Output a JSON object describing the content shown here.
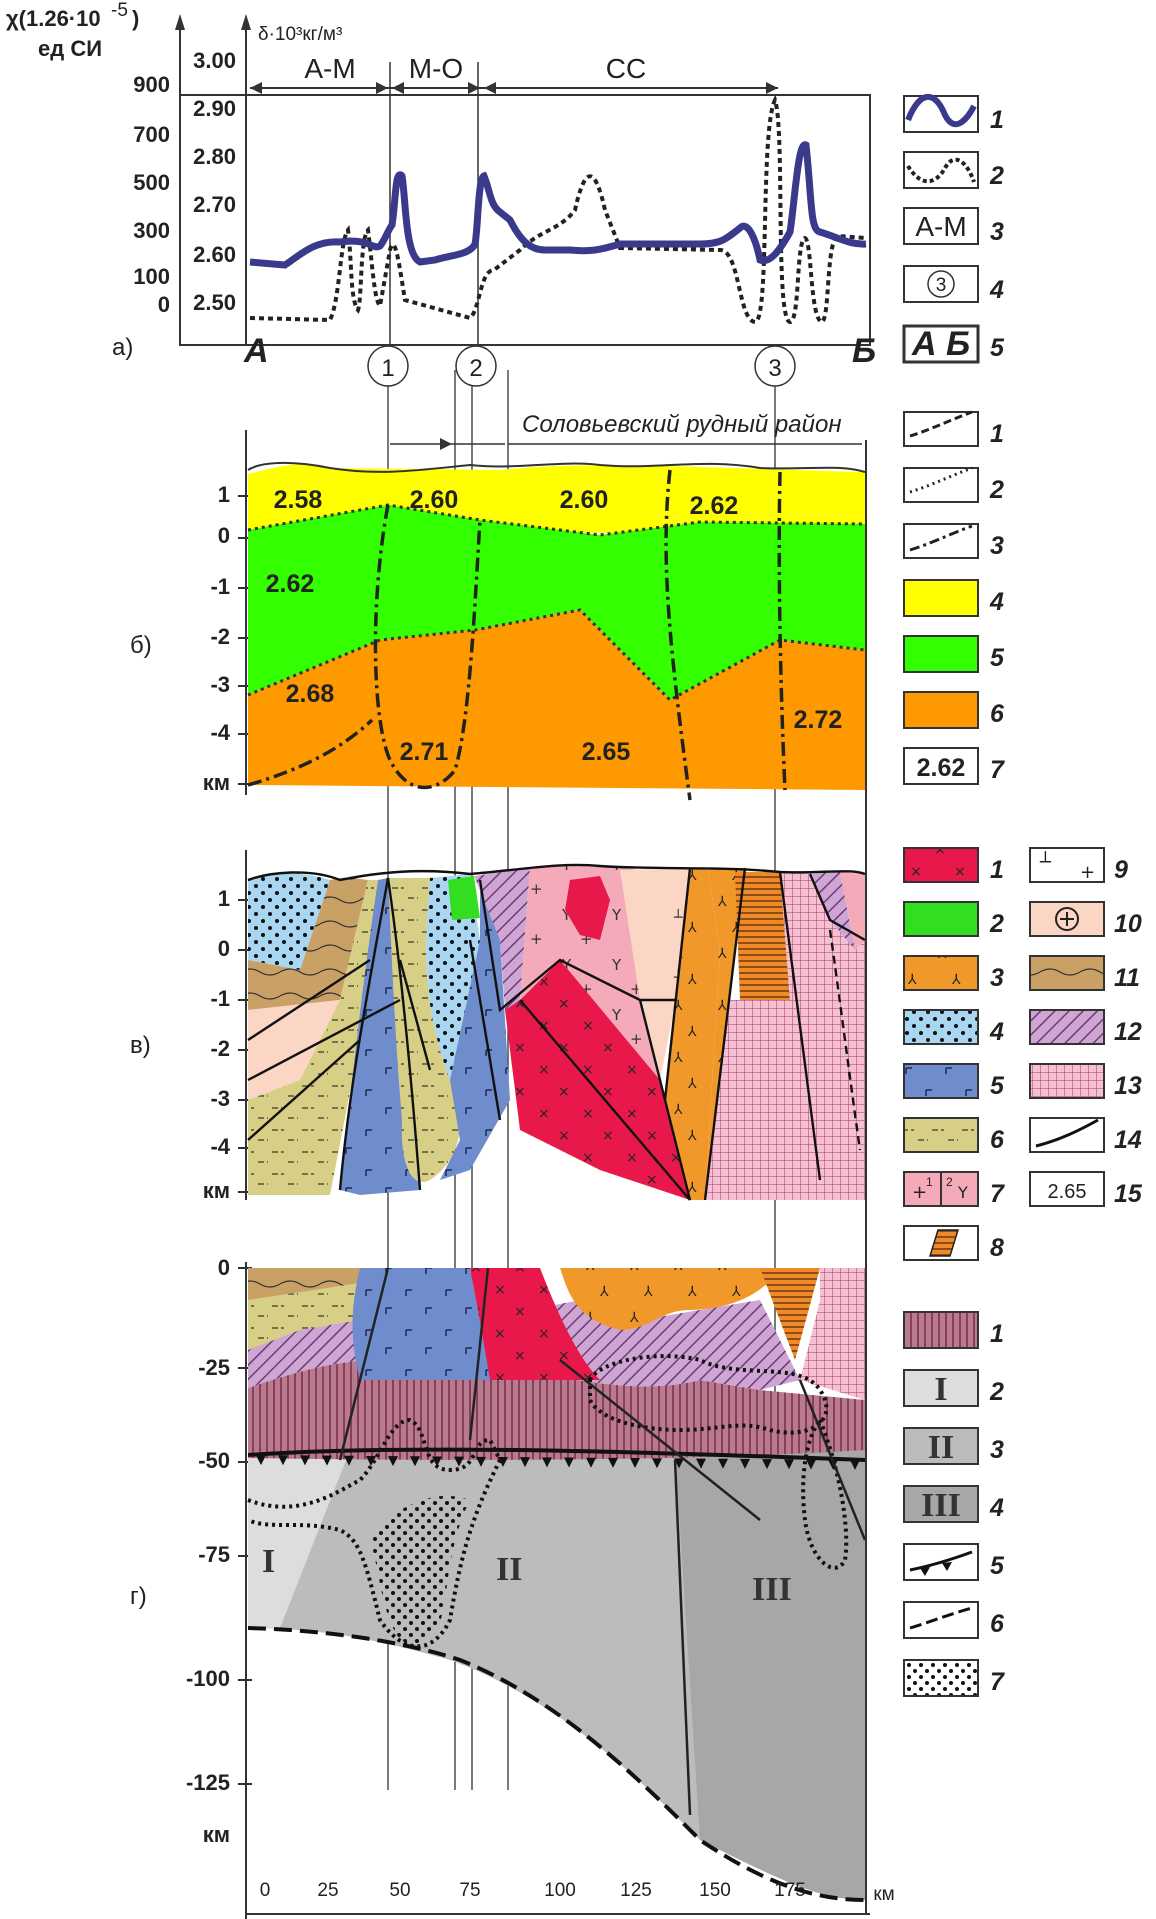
{
  "panel_a": {
    "label": "а)",
    "chi_axis_title": "χ(1.26·10",
    "chi_axis_exp": "-5",
    "chi_axis_close": ")",
    "chi_axis_unit": "ед СИ",
    "density_axis_title": "δ·10³кг/м³",
    "chi_ticks": [
      "900",
      "700",
      "500",
      "300",
      "100",
      "0"
    ],
    "density_ticks": [
      "3.00",
      "2.90",
      "2.80",
      "2.70",
      "2.60",
      "2.50"
    ],
    "zones": [
      "А-М",
      "М-О",
      "СС"
    ],
    "start_label": "А",
    "end_label": "Б",
    "fault_markers": [
      "1",
      "2",
      "3"
    ]
  },
  "panel_b": {
    "label": "б)",
    "district": "Соловьевский рудный район",
    "depth_ticks": [
      "1",
      "0",
      "-1",
      "-2",
      "-3",
      "-4"
    ],
    "unit": "км",
    "densities": [
      "2.58",
      "2.60",
      "2.60",
      "2.62",
      "2.62",
      "2.68",
      "2.71",
      "2.65",
      "2.72"
    ]
  },
  "panel_v": {
    "label": "в)",
    "depth_ticks": [
      "1",
      "0",
      "-1",
      "-2",
      "-3",
      "-4"
    ],
    "unit": "км"
  },
  "panel_g": {
    "label": "г)",
    "depth_ticks": [
      "0",
      "-25",
      "-50",
      "-75",
      "-100",
      "-125"
    ],
    "unit": "км",
    "blocks": [
      "I",
      "II",
      "III"
    ],
    "x_ticks": [
      "0",
      "25",
      "50",
      "75",
      "100",
      "125",
      "150",
      "175"
    ],
    "x_unit": "км"
  },
  "legend_a": [
    {
      "num": "1",
      "text": ""
    },
    {
      "num": "2",
      "text": ""
    },
    {
      "num": "3",
      "text": "А-М"
    },
    {
      "num": "4",
      "text": "3"
    },
    {
      "num": "5",
      "text": "А Б"
    }
  ],
  "legend_b": [
    "1",
    "2",
    "3",
    "4",
    "5",
    "6",
    "7"
  ],
  "legend_b_sample": "2.62",
  "legend_v_left": [
    "1",
    "2",
    "3",
    "4",
    "5",
    "6",
    "7",
    "8"
  ],
  "legend_v_right": [
    "9",
    "10",
    "11",
    "12",
    "13",
    "14",
    "15"
  ],
  "legend_v_sample": "2.65",
  "legend_v7_sub": [
    "1",
    "2"
  ],
  "legend_g": [
    "1",
    "2",
    "3",
    "4",
    "5",
    "6",
    "7"
  ],
  "legend_g_roman": [
    "I",
    "II",
    "III"
  ],
  "colors": {
    "chi_curve": "#3a3a8c",
    "yellow_layer": "#ffff00",
    "green_layer": "#33ff00",
    "orange_layer": "#ff9900",
    "granite_red": "#e8194a",
    "gabbro_blue": "#6f8ccc",
    "sediment_olive": "#d8cf86",
    "tuff_tan": "#c9a066",
    "pink": "#f4aab8",
    "violet": "#c9a6cc",
    "mantle_pink": "#b87a8e",
    "block_I": "#dddddd",
    "block_II": "#bcbcbc",
    "block_III": "#a7a7a7"
  }
}
